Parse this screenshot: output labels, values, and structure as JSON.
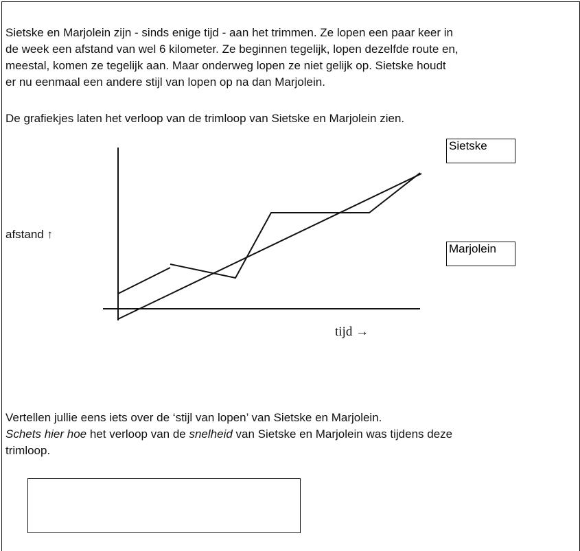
{
  "intro": {
    "lines": [
      "Sietske en Marjolein zijn - sinds enige tijd - aan het trimmen. Ze lopen een paar keer in",
      "de week een afstand van wel 6 kilometer. Ze beginnen tegelijk, lopen dezelfde route en,",
      "meestal, komen ze tegelijk aan. Maar onderweg lopen ze niet gelijk op. Sietske houdt",
      "er nu eenmaal een andere stijl van lopen op na dan Marjolein."
    ]
  },
  "caption": "De grafiekjes laten het verloop van de trimloop van Sietske en Marjolein zien.",
  "graph": {
    "y_label": "afstand ↑",
    "x_label": "tijd →",
    "labels": [
      "Sietske",
      "Marjolein"
    ]
  },
  "question": {
    "line1": "Vertellen jullie eens iets over de ‘stijl van lopen’ van Sietske en Marjolein.",
    "line2": {
      "a": "Schets hier hoe",
      "b": " het verloop van de ",
      "c": "snelheid",
      "d": " van Sietske en Marjolein was tijdens deze"
    },
    "line3": "trimloop."
  }
}
